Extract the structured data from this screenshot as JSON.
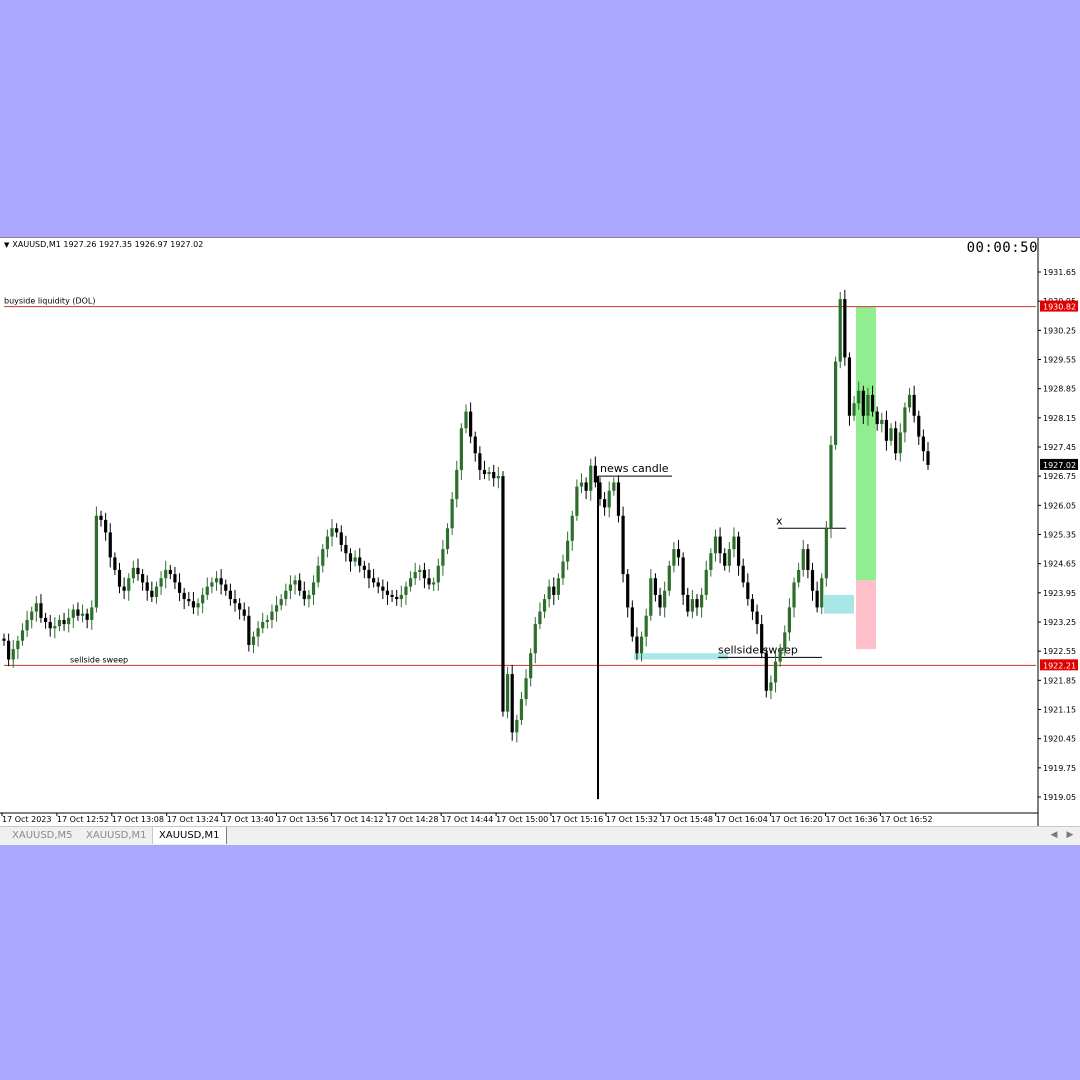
{
  "header": {
    "symbol_info": "XAUUSD,M1  1927.26 1927.35 1926.97 1927.02",
    "countdown": "00:00:50"
  },
  "tabs": [
    {
      "label": "XAUUSD,M5",
      "active": false
    },
    {
      "label": "XAUUSD,M1",
      "active": false
    },
    {
      "label": "XAUUSD,M1",
      "active": true
    }
  ],
  "colors": {
    "bull": "#2d6e2d",
    "bear": "#000000",
    "level_line": "#c0392b",
    "price_label_red": "#e00000",
    "price_label_current": "#000000",
    "green_zone": "#90ee90",
    "red_zone": "#ffc0cb",
    "cyan_zone": "#a8e6e8"
  },
  "chart_data": {
    "type": "candlestick",
    "symbol": "XAUUSD",
    "timeframe": "M1",
    "ylim": [
      1918.9,
      1932.0
    ],
    "x_tick_labels": [
      "17 Oct 2023",
      "17 Oct 12:52",
      "17 Oct 13:08",
      "17 Oct 13:24",
      "17 Oct 13:40",
      "17 Oct 13:56",
      "17 Oct 14:12",
      "17 Oct 14:28",
      "17 Oct 14:44",
      "17 Oct 15:00",
      "17 Oct 15:16",
      "17 Oct 15:32",
      "17 Oct 15:48",
      "17 Oct 16:04",
      "17 Oct 16:20",
      "17 Oct 16:36",
      "17 Oct 16:52"
    ],
    "y_ticks": [
      1931.65,
      1930.95,
      1930.25,
      1929.55,
      1928.85,
      1928.15,
      1927.45,
      1926.75,
      1926.05,
      1925.35,
      1924.65,
      1923.95,
      1923.25,
      1922.55,
      1921.85,
      1921.15,
      1920.45,
      1919.75,
      1919.05
    ],
    "price_labels": [
      {
        "text": "1930.82",
        "value": 1930.82,
        "style": "red"
      },
      {
        "text": "1927.02",
        "value": 1927.02,
        "style": "current"
      },
      {
        "text": "1922.21",
        "value": 1922.21,
        "style": "red"
      }
    ],
    "levels": [
      {
        "label": "buyside liquidity (DOL)",
        "value": 1930.82
      },
      {
        "label": "sellside sweep",
        "value": 1922.21
      }
    ],
    "annotations": [
      {
        "label": "news candle"
      },
      {
        "label": "sellside sweep"
      },
      {
        "label": "x"
      }
    ],
    "current_price": 1927.02,
    "last_candle": {
      "open": 1927.26,
      "high": 1927.35,
      "low": 1926.97,
      "close": 1927.02
    },
    "close_path": [
      1922.8,
      1922.35,
      1922.6,
      1922.8,
      1923.05,
      1923.3,
      1923.5,
      1923.7,
      1923.35,
      1923.25,
      1923.1,
      1923.15,
      1923.3,
      1923.2,
      1923.35,
      1923.55,
      1923.4,
      1923.45,
      1923.3,
      1923.6,
      1925.8,
      1925.7,
      1925.4,
      1924.8,
      1924.5,
      1924.1,
      1924.0,
      1924.3,
      1924.55,
      1924.4,
      1924.2,
      1924.0,
      1923.85,
      1924.1,
      1924.3,
      1924.5,
      1924.4,
      1924.2,
      1923.95,
      1923.8,
      1923.75,
      1923.6,
      1923.7,
      1923.9,
      1924.1,
      1924.2,
      1924.3,
      1924.15,
      1924.0,
      1923.8,
      1923.7,
      1923.55,
      1923.4,
      1922.7,
      1922.9,
      1923.1,
      1923.25,
      1923.3,
      1923.5,
      1923.65,
      1923.8,
      1924.0,
      1924.15,
      1924.25,
      1924.0,
      1923.8,
      1923.9,
      1924.2,
      1924.6,
      1925.0,
      1925.3,
      1925.5,
      1925.4,
      1925.1,
      1924.9,
      1924.7,
      1924.8,
      1924.6,
      1924.5,
      1924.3,
      1924.2,
      1924.1,
      1924.0,
      1923.9,
      1923.85,
      1923.8,
      1923.9,
      1924.1,
      1924.3,
      1924.45,
      1924.5,
      1924.3,
      1924.15,
      1924.2,
      1924.6,
      1925.0,
      1925.5,
      1926.2,
      1926.9,
      1927.9,
      1928.3,
      1927.7,
      1927.3,
      1926.9,
      1926.8,
      1926.85,
      1926.7,
      1926.75,
      1921.1,
      1922.0,
      1920.6,
      1920.9,
      1921.4,
      1921.9,
      1922.5,
      1923.2,
      1923.5,
      1923.8,
      1924.1,
      1923.9,
      1924.3,
      1924.7,
      1925.2,
      1925.8,
      1926.5,
      1926.6,
      1926.4,
      1927.0,
      1926.6,
      1926.2,
      1926.0,
      1926.4,
      1926.6,
      1925.8,
      1924.4,
      1923.6,
      1922.9,
      1922.5,
      1922.9,
      1923.4,
      1924.3,
      1923.9,
      1923.6,
      1924.0,
      1924.6,
      1925.0,
      1924.8,
      1923.9,
      1923.5,
      1923.8,
      1923.6,
      1923.9,
      1924.5,
      1924.9,
      1925.3,
      1924.9,
      1924.6,
      1925.0,
      1925.3,
      1924.6,
      1924.2,
      1923.8,
      1923.5,
      1923.2,
      1922.5,
      1921.6,
      1921.8,
      1922.3,
      1922.6,
      1923.0,
      1923.6,
      1924.2,
      1924.5,
      1925.0,
      1924.5,
      1924.0,
      1923.6,
      1924.3,
      1925.5,
      1927.5,
      1929.5,
      1931.0,
      1929.6,
      1928.2,
      1928.5,
      1928.8,
      1928.2,
      1928.7,
      1928.3,
      1928.0,
      1928.1,
      1927.6,
      1927.9,
      1927.3,
      1927.8,
      1928.4,
      1928.7,
      1928.2,
      1927.7,
      1927.35,
      1927.02
    ]
  }
}
